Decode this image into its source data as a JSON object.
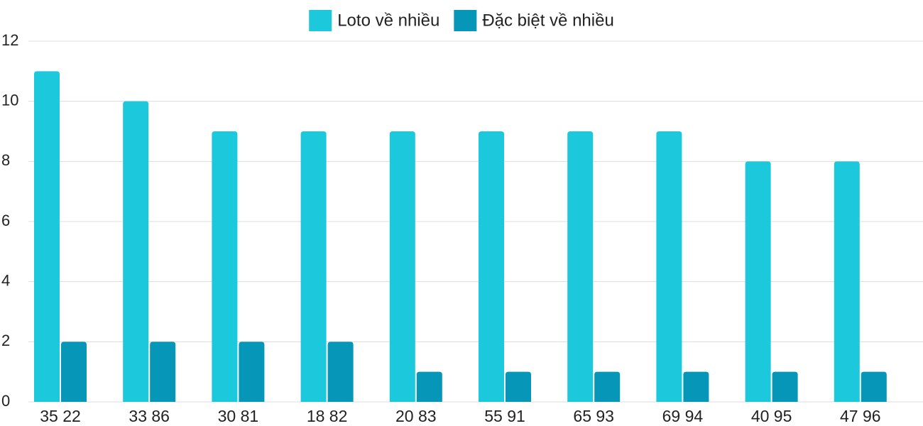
{
  "chart_data": {
    "type": "bar",
    "categories": [
      "35 22",
      "33 86",
      "30 81",
      "18 82",
      "20 83",
      "55 91",
      "65 93",
      "69 94",
      "40 95",
      "47 96"
    ],
    "series": [
      {
        "name": "Loto về nhiều",
        "color": "#1bc8dc",
        "values": [
          11,
          10,
          9,
          9,
          9,
          9,
          9,
          9,
          8,
          8
        ]
      },
      {
        "name": "Đặc biệt về nhiều",
        "color": "#0596b8",
        "values": [
          2,
          2,
          2,
          2,
          1,
          1,
          1,
          1,
          1,
          1
        ]
      }
    ],
    "ylim": [
      0,
      12
    ],
    "yticks": [
      0,
      2,
      4,
      6,
      8,
      10,
      12
    ],
    "grid": true,
    "legend": "top"
  }
}
